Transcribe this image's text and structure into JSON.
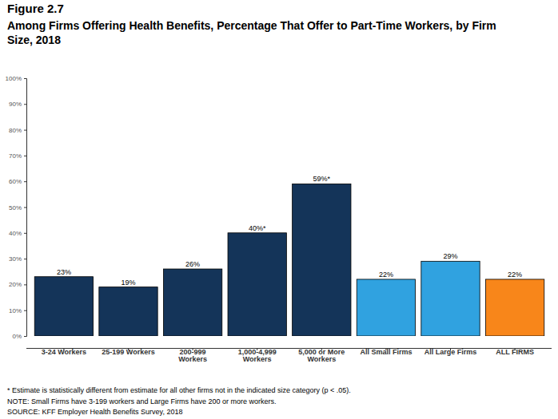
{
  "chart_data": {
    "type": "bar",
    "title": "Figure 2.7",
    "subtitle": "Among Firms Offering Health Benefits, Percentage That Offer to Part-Time Workers, by Firm Size, 2018",
    "categories": [
      "3-24 Workers",
      "25-199 Workers",
      "200-999 Workers",
      "1,000-4,999 Workers",
      "5,000 or More Workers",
      "All Small Firms",
      "All Large Firms",
      "ALL FIRMS"
    ],
    "values": [
      23,
      19,
      26,
      40,
      59,
      22,
      29,
      22
    ],
    "value_labels": [
      "23%",
      "19%",
      "26%",
      "40%*",
      "59%*",
      "22%",
      "29%",
      "22%"
    ],
    "colors": [
      "#143459",
      "#143459",
      "#143459",
      "#143459",
      "#143459",
      "#30a2e0",
      "#30a2e0",
      "#f8861a"
    ],
    "data_labels": true,
    "grid": false,
    "ylim": [
      0,
      100
    ],
    "yticks": [
      {
        "value": 0,
        "label": "0%"
      },
      {
        "value": 10,
        "label": "10%"
      },
      {
        "value": 20,
        "label": "20%"
      },
      {
        "value": 30,
        "label": "30%"
      },
      {
        "value": 40,
        "label": "40%"
      },
      {
        "value": 50,
        "label": "50%"
      },
      {
        "value": 60,
        "label": "60%"
      },
      {
        "value": 70,
        "label": "70%"
      },
      {
        "value": 80,
        "label": "80%"
      },
      {
        "value": 90,
        "label": "90%"
      },
      {
        "value": 100,
        "label": "100%"
      }
    ],
    "annotations": [
      "* Estimate is statistically different from estimate for all other firms not in the indicated size category (p < .05).",
      "NOTE: Small Firms have 3-199 workers and Large Firms have 200 or more workers.",
      "SOURCE: KFF Employer Health Benefits Survey, 2018"
    ]
  }
}
